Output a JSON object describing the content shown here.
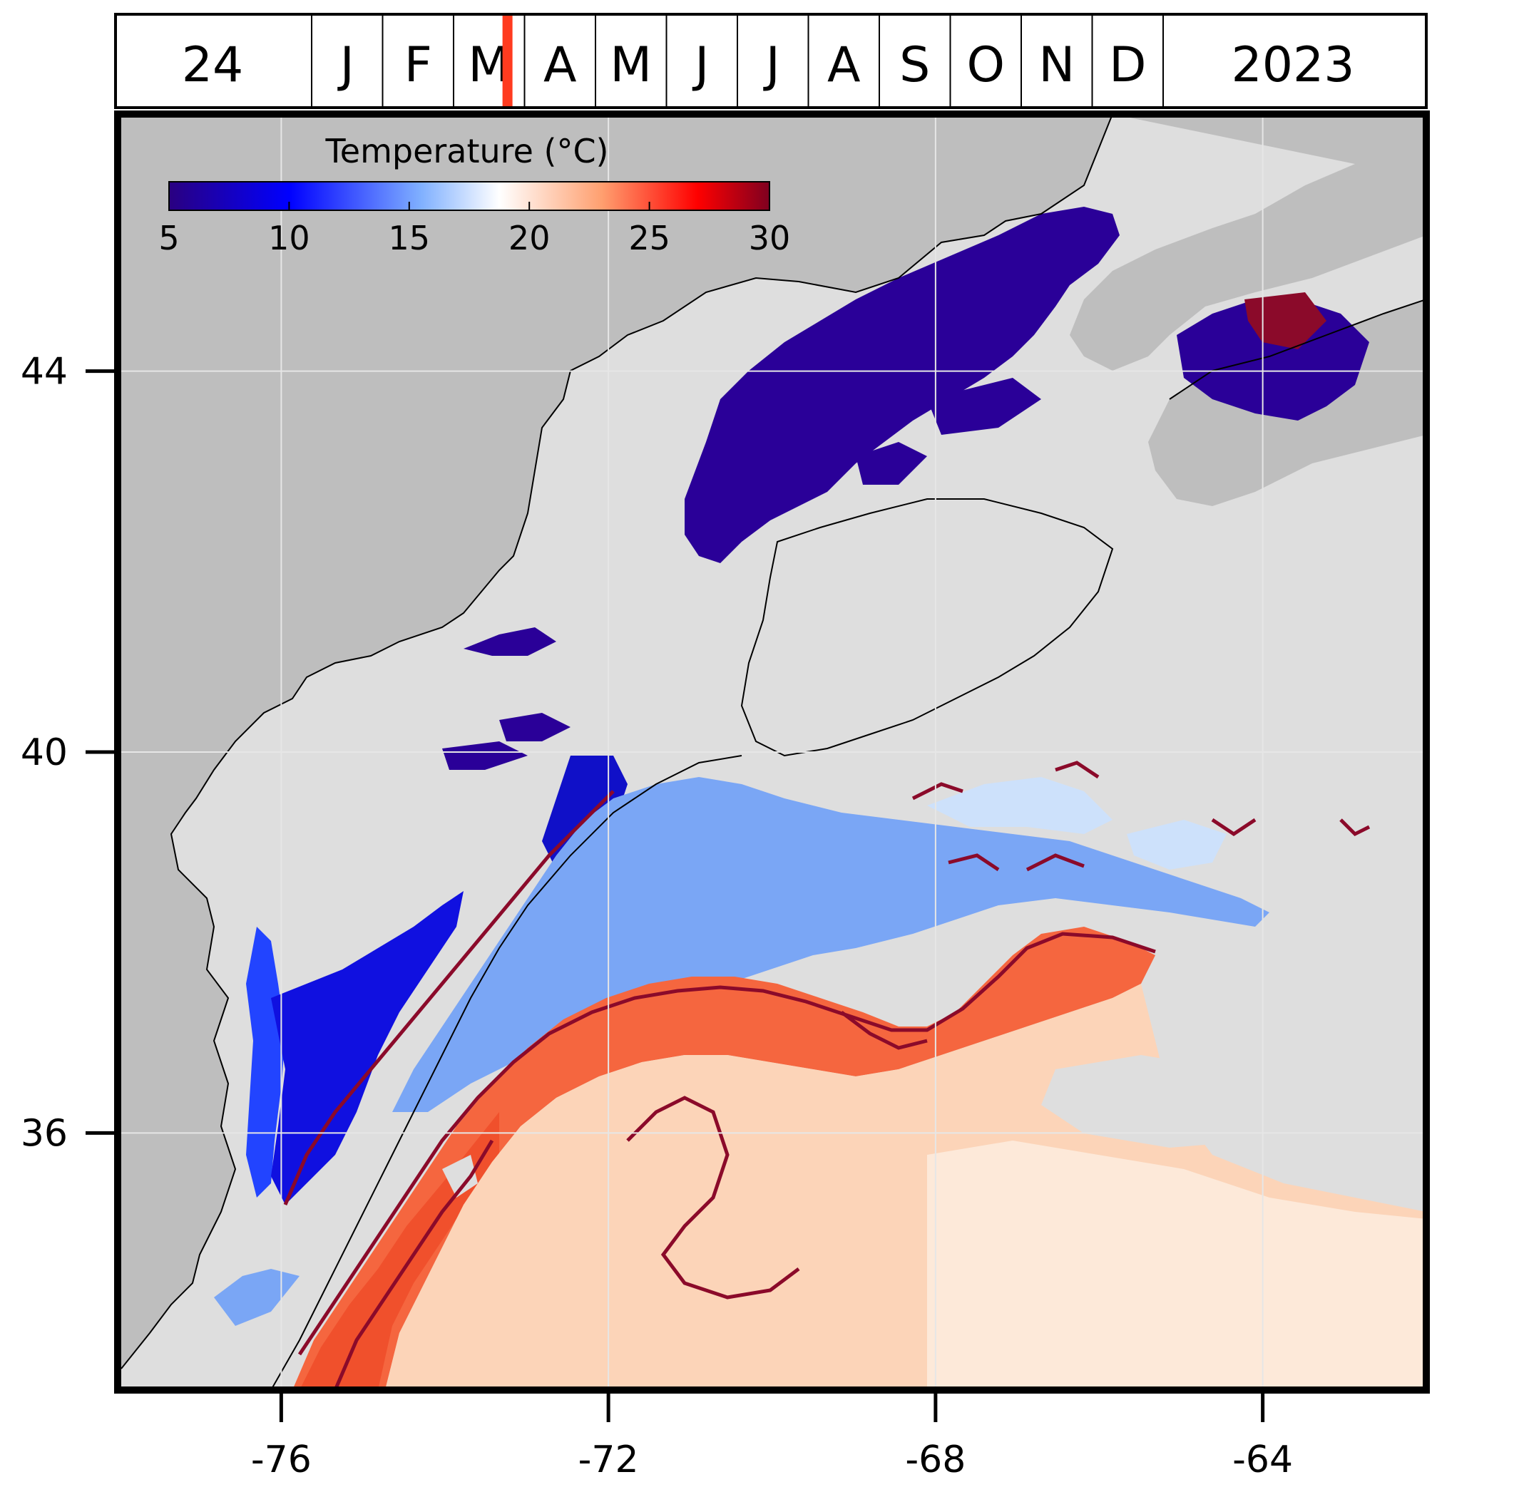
{
  "timeline": {
    "day": "24",
    "months": [
      "J",
      "F",
      "M",
      "A",
      "M",
      "J",
      "J",
      "A",
      "S",
      "O",
      "N",
      "D"
    ],
    "year": "2023",
    "marker_color": "#ff3b1f",
    "marker_month_fraction": 0.23
  },
  "map": {
    "lon_range": [
      -78,
      -62
    ],
    "lat_range": [
      33.3,
      46.7
    ],
    "lon_ticks": [
      "-76",
      "-72",
      "-68",
      "-64"
    ],
    "lon_tick_values": [
      -76,
      -72,
      -68,
      -64
    ],
    "lat_ticks": [
      "44",
      "40",
      "36"
    ],
    "lat_tick_values": [
      44,
      40,
      36
    ],
    "land_color": "#bebebe",
    "missing_color": "#dedede",
    "grid": true
  },
  "colorbar": {
    "title": "Temperature (°C)",
    "ticks": [
      "5",
      "10",
      "15",
      "20",
      "25",
      "30"
    ],
    "tick_values": [
      5,
      10,
      15,
      20,
      25,
      30
    ],
    "range": [
      5,
      30
    ],
    "colormap_stops": [
      "#2a0080",
      "#0000ff",
      "#80b0ff",
      "#ffffff",
      "#ffa070",
      "#ff0000",
      "#7f0020"
    ]
  },
  "contour_color": "#8b0a2a"
}
